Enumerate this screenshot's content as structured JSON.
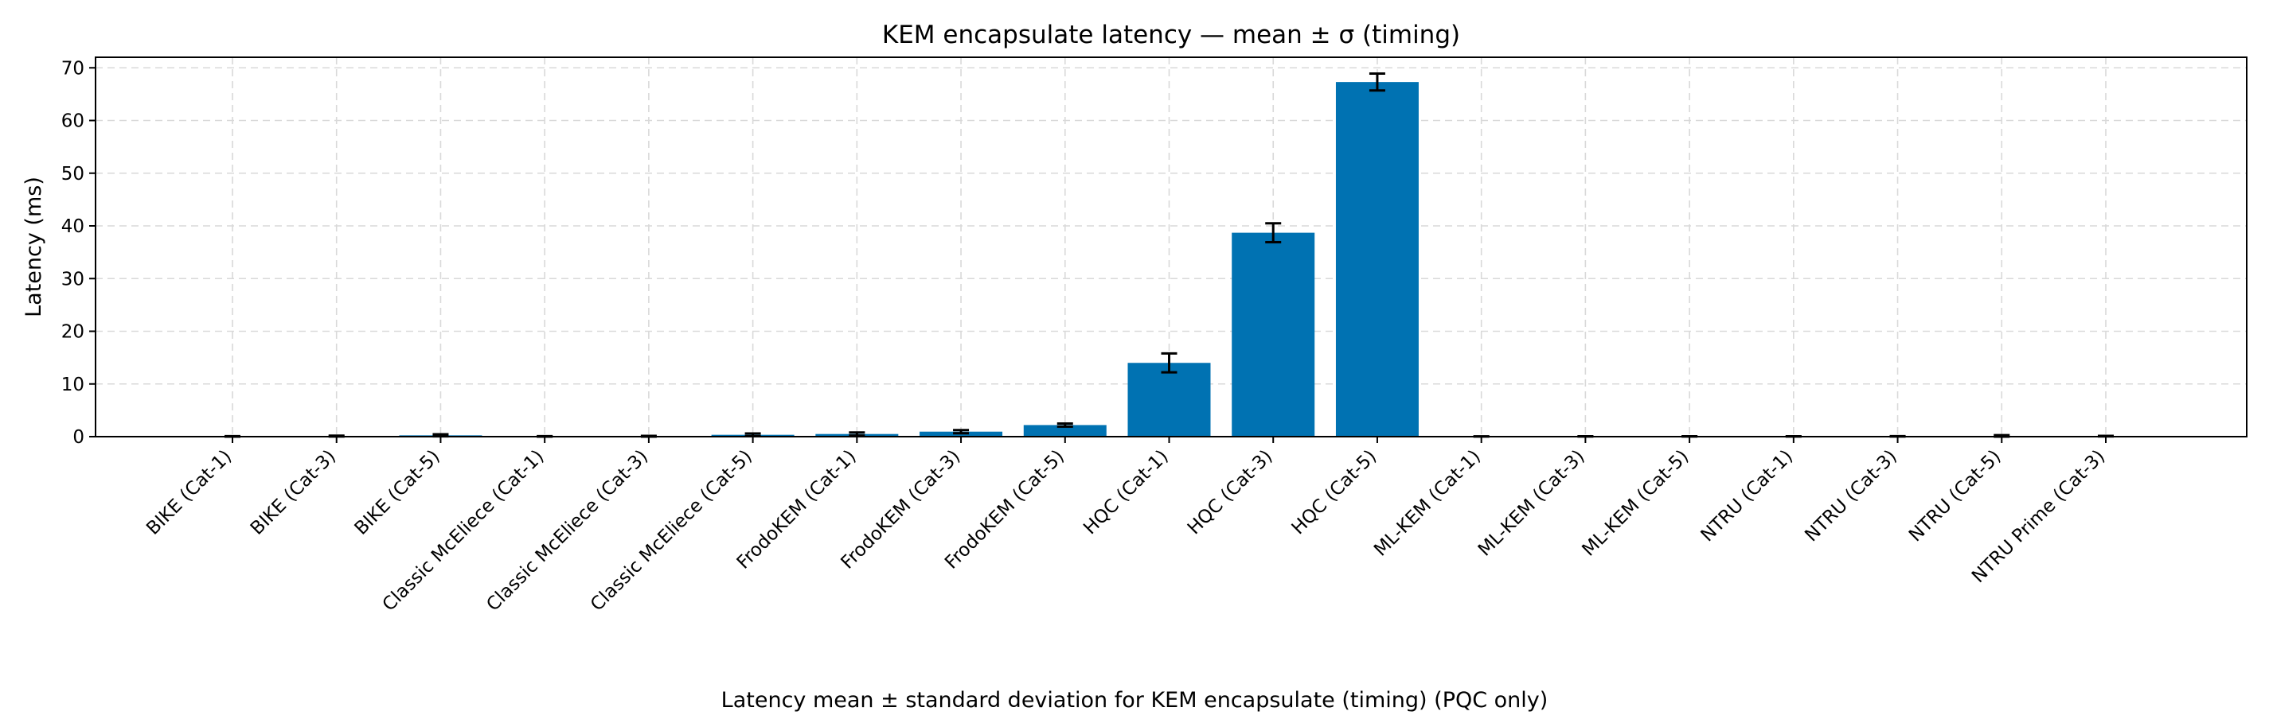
{
  "chart_data": {
    "type": "bar",
    "title": "KEM encapsulate latency — mean ± σ (timing)",
    "xlabel": "",
    "ylabel": "Latency (ms)",
    "caption": "Latency mean ± standard deviation for KEM encapsulate (timing) (PQC only)",
    "ylim": [
      0,
      72
    ],
    "yticks": [
      0,
      10,
      20,
      30,
      40,
      50,
      60,
      70
    ],
    "grid": true,
    "bar_color": "#0072b2",
    "categories": [
      "BIKE (Cat-1)",
      "BIKE (Cat-3)",
      "BIKE (Cat-5)",
      "Classic McEliece (Cat-1)",
      "Classic McEliece (Cat-3)",
      "Classic McEliece (Cat-5)",
      "FrodoKEM (Cat-1)",
      "FrodoKEM (Cat-3)",
      "FrodoKEM (Cat-5)",
      "HQC (Cat-1)",
      "HQC (Cat-3)",
      "HQC (Cat-5)",
      "ML-KEM (Cat-1)",
      "ML-KEM (Cat-3)",
      "ML-KEM (Cat-5)",
      "NTRU (Cat-1)",
      "NTRU (Cat-3)",
      "NTRU (Cat-5)",
      "NTRU Prime (Cat-3)"
    ],
    "values": [
      0.05,
      0.1,
      0.25,
      0.05,
      0.08,
      0.35,
      0.5,
      0.95,
      2.2,
      14.0,
      38.7,
      67.3,
      0.03,
      0.04,
      0.05,
      0.04,
      0.06,
      0.08,
      0.1
    ],
    "errors": [
      0.05,
      0.08,
      0.2,
      0.05,
      0.08,
      0.25,
      0.3,
      0.3,
      0.3,
      1.8,
      1.8,
      1.6,
      0.02,
      0.03,
      0.03,
      0.03,
      0.04,
      0.2,
      0.06
    ]
  }
}
